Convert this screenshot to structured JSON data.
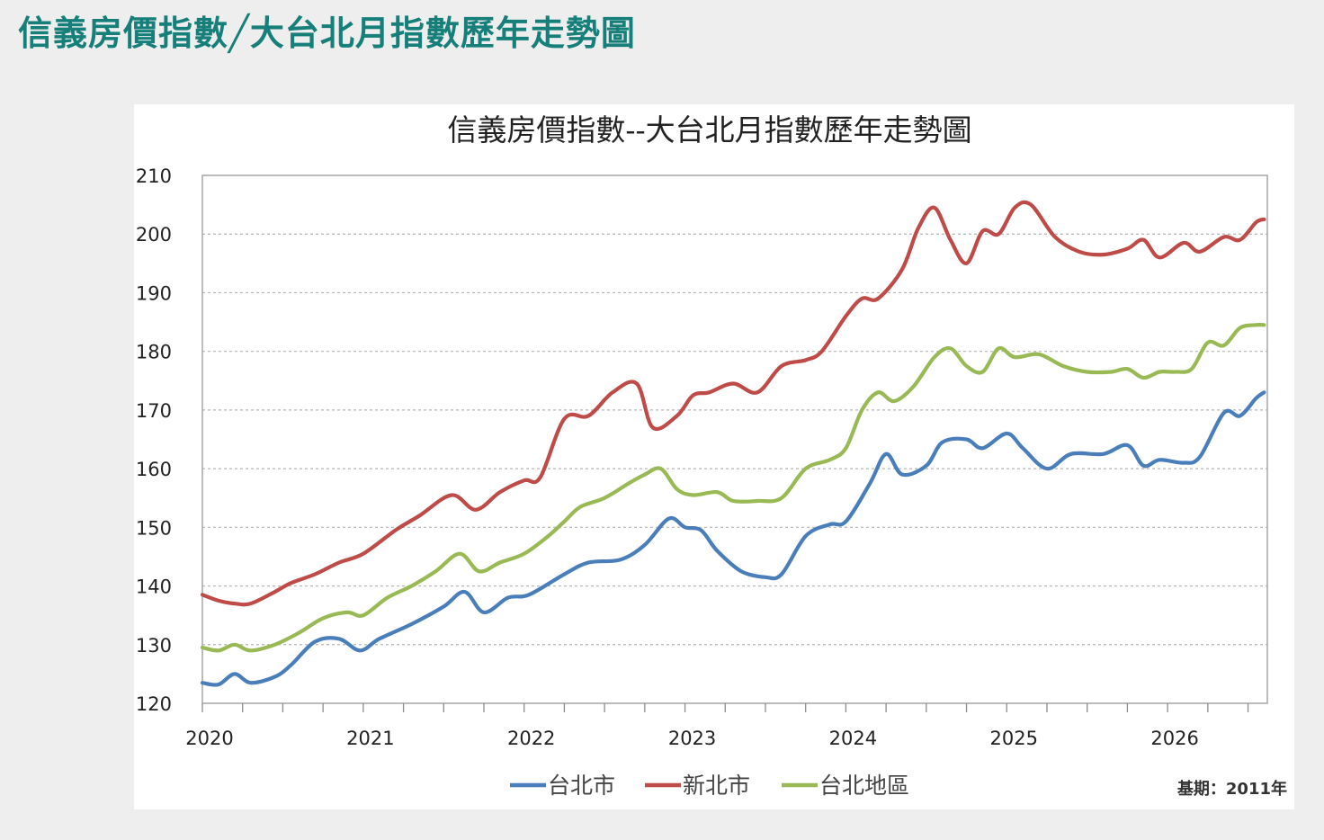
{
  "page": {
    "title": "信義房價指數╱大台北月指數歷年走勢圖"
  },
  "chart_data": {
    "type": "line",
    "title": "信義房價指數--大台北月指數歷年走勢圖",
    "xlabel": "",
    "ylabel": "",
    "ylim": [
      120,
      210
    ],
    "xlim": [
      2020.0,
      2026.62
    ],
    "yticks": [
      120,
      130,
      140,
      150,
      160,
      170,
      180,
      190,
      200,
      210
    ],
    "xticks": [
      2020,
      2021,
      2022,
      2023,
      2024,
      2025,
      2026
    ],
    "grid": "horizontal-dashed",
    "legend_position": "bottom-center",
    "note": "基期：2011年",
    "series": [
      {
        "name": "台北市",
        "color": "#4a7ebb",
        "x": [
          2020.0,
          2020.1,
          2020.2,
          2020.3,
          2020.45,
          2020.55,
          2020.7,
          2020.85,
          2020.98,
          2021.1,
          2021.3,
          2021.5,
          2021.63,
          2021.75,
          2021.9,
          2022.03,
          2022.25,
          2022.4,
          2022.6,
          2022.75,
          2022.9,
          2023.0,
          2023.1,
          2023.2,
          2023.35,
          2023.5,
          2023.6,
          2023.75,
          2023.9,
          2024.0,
          2024.15,
          2024.25,
          2024.35,
          2024.5,
          2024.6,
          2024.75,
          2024.85,
          2025.0,
          2025.1,
          2025.25,
          2025.4,
          2025.6,
          2025.75,
          2025.85,
          2025.95,
          2026.1,
          2026.2,
          2026.35,
          2026.45,
          2026.55,
          2026.6
        ],
        "values": [
          123.5,
          123.2,
          125,
          123.5,
          124.5,
          126.5,
          130.5,
          131,
          129,
          131,
          133.5,
          136.5,
          139,
          135.5,
          138,
          138.5,
          142,
          144,
          144.5,
          147,
          151.5,
          150,
          149.5,
          146,
          142.5,
          141.5,
          142,
          148.5,
          150.5,
          151,
          157.5,
          162.5,
          159,
          160.5,
          164.5,
          165,
          163.5,
          166,
          163.5,
          160,
          162.5,
          162.5,
          164,
          160.5,
          161.5,
          161,
          162,
          169.5,
          169,
          172,
          173
        ]
      },
      {
        "name": "新北市",
        "color": "#be4b48",
        "x": [
          2020.0,
          2020.1,
          2020.2,
          2020.3,
          2020.45,
          2020.55,
          2020.7,
          2020.85,
          2021.0,
          2021.2,
          2021.35,
          2021.55,
          2021.7,
          2021.85,
          2022.0,
          2022.1,
          2022.25,
          2022.4,
          2022.55,
          2022.7,
          2022.8,
          2022.95,
          2023.05,
          2023.15,
          2023.3,
          2023.45,
          2023.6,
          2023.75,
          2023.85,
          2024.0,
          2024.1,
          2024.2,
          2024.35,
          2024.45,
          2024.55,
          2024.65,
          2024.75,
          2024.85,
          2024.95,
          2025.05,
          2025.15,
          2025.3,
          2025.45,
          2025.6,
          2025.75,
          2025.85,
          2025.95,
          2026.1,
          2026.2,
          2026.35,
          2026.45,
          2026.55,
          2026.6
        ],
        "values": [
          138.5,
          137.5,
          137,
          137,
          139,
          140.5,
          142,
          144,
          145.5,
          149.5,
          152,
          155.5,
          153,
          156,
          158,
          158.5,
          168.5,
          169,
          173,
          174.5,
          167,
          169,
          172.5,
          173,
          174.5,
          173,
          177.5,
          178.5,
          180,
          186,
          189,
          189,
          194,
          201,
          204.5,
          199,
          195,
          200.5,
          200,
          204.5,
          205,
          199.5,
          197,
          196.5,
          197.5,
          199,
          196,
          198.5,
          197,
          199.5,
          199,
          202,
          202.5
        ]
      },
      {
        "name": "台北地區",
        "color": "#98b954",
        "x": [
          2020.0,
          2020.1,
          2020.2,
          2020.3,
          2020.45,
          2020.6,
          2020.75,
          2020.9,
          2021.0,
          2021.15,
          2021.3,
          2021.45,
          2021.6,
          2021.72,
          2021.85,
          2022.0,
          2022.15,
          2022.25,
          2022.35,
          2022.5,
          2022.65,
          2022.75,
          2022.85,
          2022.95,
          2023.05,
          2023.2,
          2023.3,
          2023.45,
          2023.6,
          2023.75,
          2023.9,
          2024.0,
          2024.1,
          2024.2,
          2024.3,
          2024.42,
          2024.55,
          2024.65,
          2024.75,
          2024.85,
          2024.95,
          2025.05,
          2025.2,
          2025.35,
          2025.5,
          2025.65,
          2025.75,
          2025.85,
          2025.95,
          2026.05,
          2026.15,
          2026.25,
          2026.35,
          2026.45,
          2026.55,
          2026.6
        ],
        "values": [
          129.5,
          129,
          130,
          129,
          130,
          132,
          134.5,
          135.5,
          135,
          138,
          140,
          142.5,
          145.5,
          142.5,
          144,
          145.5,
          148.5,
          151,
          153.5,
          155,
          157.5,
          159,
          160,
          156.5,
          155.5,
          156,
          154.5,
          154.5,
          155,
          160,
          161.5,
          163.5,
          170,
          173,
          171.5,
          174,
          179,
          180.5,
          177.5,
          176.5,
          180.5,
          179,
          179.5,
          177.5,
          176.5,
          176.5,
          177,
          175.5,
          176.5,
          176.5,
          177,
          181.5,
          181,
          184,
          184.5,
          184.5
        ]
      }
    ]
  }
}
